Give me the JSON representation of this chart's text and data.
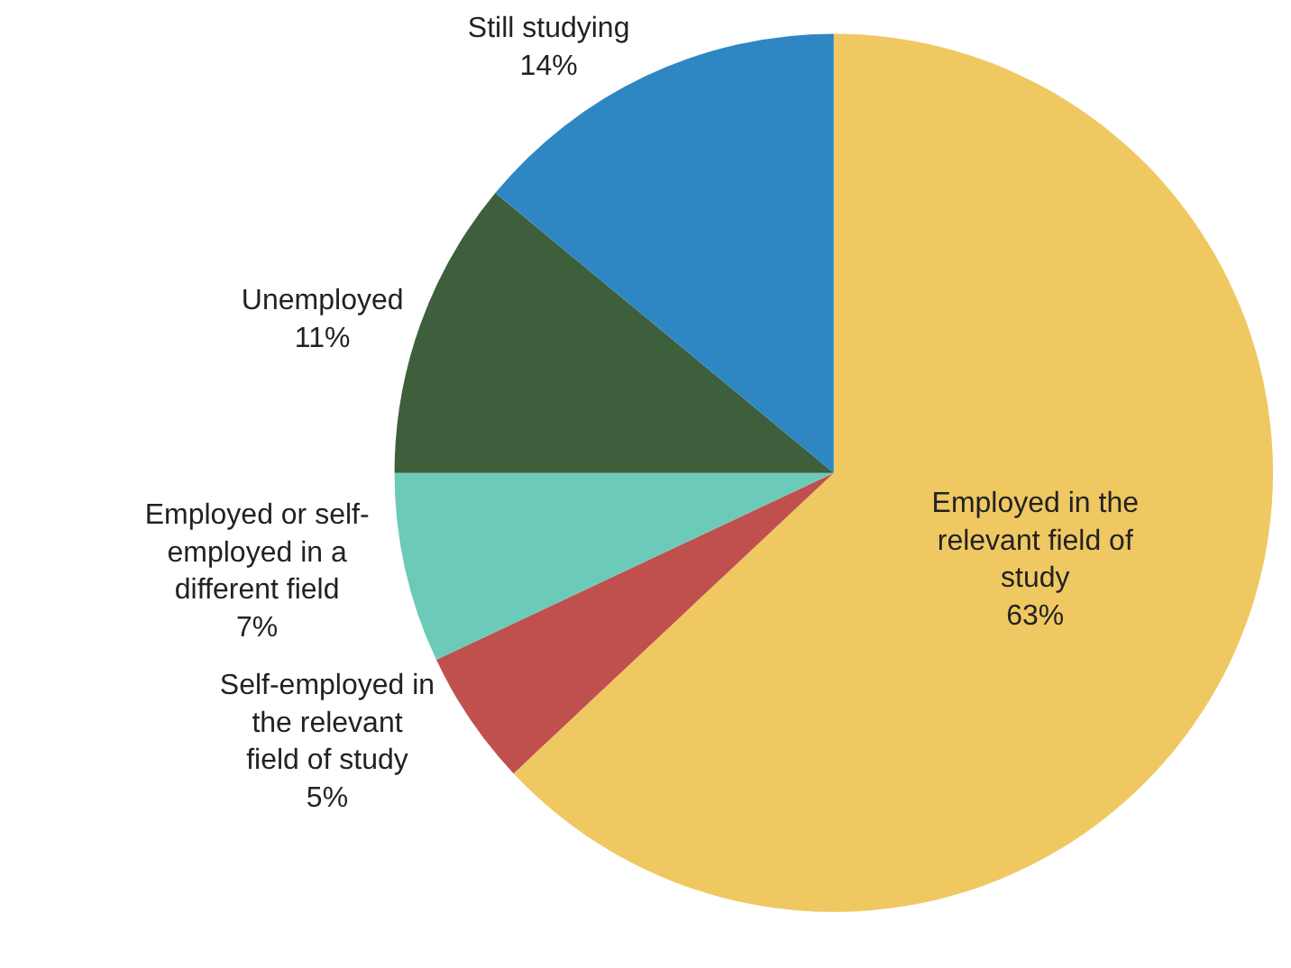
{
  "chart_data": {
    "type": "pie",
    "categories": [
      "Employed in the relevant field of study",
      "Self-employed in the relevant field of study",
      "Employed or self-employed in a different field",
      "Unemployed",
      "Still studying"
    ],
    "values": [
      63,
      5,
      7,
      11,
      14
    ],
    "colors": [
      "#f0c862",
      "#c0504d",
      "#6ccab8",
      "#3d5f3c",
      "#2e87c2"
    ],
    "value_labels": [
      "63%",
      "5%",
      "7%",
      "11%",
      "14%"
    ],
    "legend": false
  }
}
